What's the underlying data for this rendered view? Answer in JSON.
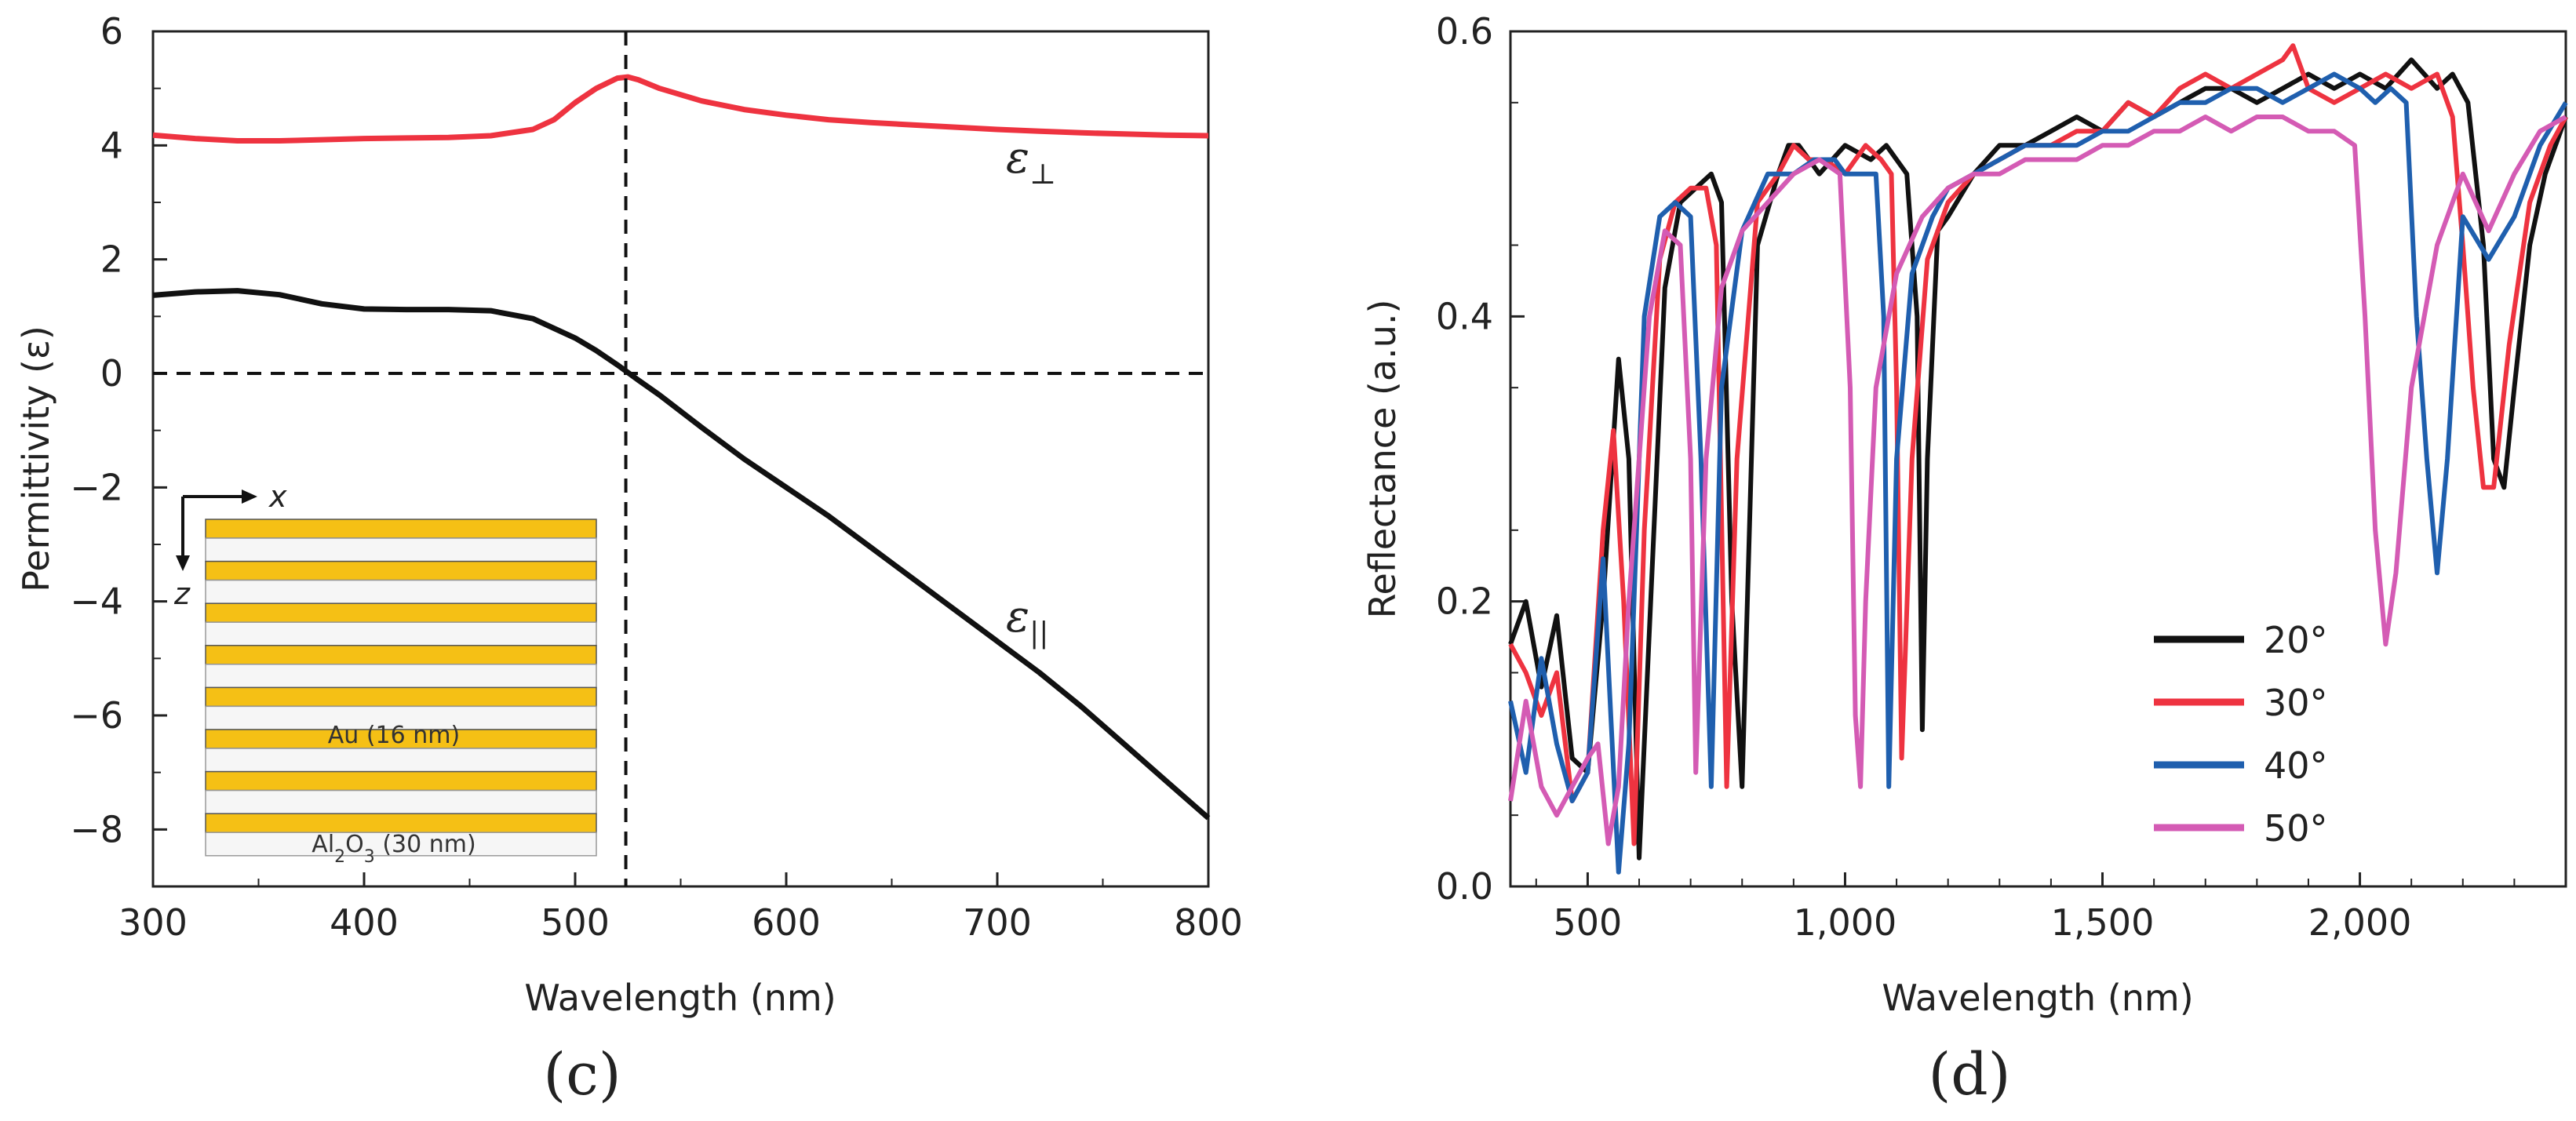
{
  "chart_data": [
    {
      "panel": "(c)",
      "type": "line",
      "xlabel": "Wavelength (nm)",
      "ylabel": "Permittivity (ε)",
      "xlim": [
        300,
        800
      ],
      "ylim": [
        -9,
        6
      ],
      "xticks": [
        300,
        400,
        500,
        600,
        700,
        800
      ],
      "yticks": [
        6,
        4,
        2,
        0,
        -2,
        -4,
        -6,
        -8
      ],
      "vline_x": 524,
      "hline_y": 0,
      "series": [
        {
          "name": "ε⊥",
          "label_main": "ε",
          "label_sub": "⊥",
          "color": "#ee3340",
          "x": [
            300,
            320,
            340,
            360,
            380,
            400,
            420,
            440,
            460,
            480,
            490,
            500,
            510,
            520,
            525,
            530,
            540,
            560,
            580,
            600,
            620,
            640,
            660,
            680,
            700,
            720,
            740,
            760,
            780,
            800
          ],
          "y": [
            4.18,
            4.12,
            4.08,
            4.08,
            4.1,
            4.12,
            4.13,
            4.14,
            4.17,
            4.28,
            4.45,
            4.75,
            5.0,
            5.18,
            5.2,
            5.15,
            5.0,
            4.78,
            4.63,
            4.53,
            4.45,
            4.4,
            4.36,
            4.32,
            4.28,
            4.25,
            4.22,
            4.2,
            4.18,
            4.17
          ]
        },
        {
          "name": "ε||",
          "label_main": "ε",
          "label_sub": "||",
          "color": "#111111",
          "x": [
            300,
            320,
            340,
            360,
            380,
            400,
            420,
            440,
            460,
            480,
            500,
            510,
            520,
            530,
            540,
            560,
            580,
            600,
            620,
            640,
            660,
            680,
            700,
            720,
            740,
            760,
            780,
            800
          ],
          "y": [
            1.37,
            1.43,
            1.45,
            1.38,
            1.22,
            1.13,
            1.12,
            1.12,
            1.1,
            0.96,
            0.62,
            0.4,
            0.15,
            -0.12,
            -0.38,
            -0.95,
            -1.5,
            -2.0,
            -2.5,
            -3.05,
            -3.6,
            -4.15,
            -4.7,
            -5.25,
            -5.85,
            -6.5,
            -7.15,
            -7.8
          ]
        }
      ],
      "inset": {
        "x_axis_label": "x",
        "z_axis_label": "z",
        "metal_label": "Au (16 nm)",
        "dielectric_label_parts": [
          "Al",
          "2",
          "O",
          "3",
          " (30 nm)"
        ],
        "layer_pairs": 8,
        "metal_color": "#f5c015",
        "dielectric_color": "#f6f6f6"
      }
    },
    {
      "panel": "(d)",
      "type": "line",
      "xlabel": "Wavelength (nm)",
      "ylabel": "Reflectance (a.u.)",
      "xlim": [
        350,
        2400
      ],
      "ylim": [
        0,
        0.6
      ],
      "xticks": [
        500,
        1000,
        1500,
        2000
      ],
      "xticklabels": [
        "500",
        "1,000",
        "1,500",
        "2,000"
      ],
      "yticks": [
        0.0,
        0.2,
        0.4,
        0.6
      ],
      "yticklabels": [
        "0.0",
        "0.2",
        "0.4",
        "0.6"
      ],
      "legend_position": "lower-right",
      "series": [
        {
          "name": "20°",
          "color": "#111111",
          "x": [
            350,
            380,
            410,
            440,
            470,
            500,
            530,
            560,
            580,
            600,
            620,
            650,
            680,
            710,
            740,
            760,
            780,
            800,
            830,
            870,
            890,
            910,
            950,
            1000,
            1050,
            1080,
            1100,
            1120,
            1140,
            1150,
            1160,
            1180,
            1200,
            1250,
            1300,
            1350,
            1400,
            1450,
            1500,
            1550,
            1600,
            1650,
            1700,
            1750,
            1800,
            1850,
            1900,
            1950,
            2000,
            2050,
            2100,
            2150,
            2180,
            2210,
            2240,
            2260,
            2280,
            2300,
            2330,
            2360,
            2400
          ],
          "y": [
            0.17,
            0.2,
            0.14,
            0.19,
            0.09,
            0.08,
            0.2,
            0.37,
            0.3,
            0.02,
            0.18,
            0.42,
            0.48,
            0.49,
            0.5,
            0.48,
            0.2,
            0.07,
            0.45,
            0.5,
            0.52,
            0.52,
            0.5,
            0.52,
            0.51,
            0.52,
            0.51,
            0.5,
            0.4,
            0.11,
            0.3,
            0.46,
            0.47,
            0.5,
            0.52,
            0.52,
            0.53,
            0.54,
            0.53,
            0.55,
            0.54,
            0.55,
            0.56,
            0.56,
            0.55,
            0.56,
            0.57,
            0.56,
            0.57,
            0.56,
            0.58,
            0.56,
            0.57,
            0.55,
            0.45,
            0.3,
            0.28,
            0.35,
            0.45,
            0.5,
            0.54
          ]
        },
        {
          "name": "30°",
          "color": "#ee3340",
          "x": [
            350,
            380,
            410,
            440,
            470,
            500,
            530,
            550,
            570,
            590,
            610,
            640,
            670,
            700,
            730,
            750,
            770,
            790,
            830,
            870,
            900,
            930,
            960,
            1000,
            1040,
            1070,
            1090,
            1100,
            1110,
            1130,
            1160,
            1200,
            1250,
            1300,
            1350,
            1400,
            1450,
            1500,
            1550,
            1600,
            1650,
            1700,
            1750,
            1800,
            1850,
            1870,
            1900,
            1950,
            2000,
            2050,
            2100,
            2150,
            2180,
            2200,
            2220,
            2240,
            2260,
            2290,
            2330,
            2370,
            2400
          ],
          "y": [
            0.17,
            0.15,
            0.12,
            0.15,
            0.06,
            0.08,
            0.25,
            0.32,
            0.2,
            0.03,
            0.25,
            0.44,
            0.48,
            0.49,
            0.49,
            0.45,
            0.07,
            0.3,
            0.48,
            0.5,
            0.52,
            0.51,
            0.51,
            0.5,
            0.52,
            0.51,
            0.5,
            0.35,
            0.09,
            0.3,
            0.44,
            0.48,
            0.5,
            0.51,
            0.52,
            0.52,
            0.53,
            0.53,
            0.55,
            0.54,
            0.56,
            0.57,
            0.56,
            0.57,
            0.58,
            0.59,
            0.56,
            0.55,
            0.56,
            0.57,
            0.56,
            0.57,
            0.54,
            0.45,
            0.35,
            0.28,
            0.28,
            0.38,
            0.48,
            0.52,
            0.54
          ]
        },
        {
          "name": "40°",
          "color": "#1f5fae",
          "x": [
            350,
            380,
            410,
            440,
            470,
            500,
            530,
            545,
            560,
            580,
            610,
            640,
            670,
            700,
            720,
            740,
            760,
            800,
            850,
            900,
            940,
            980,
            1000,
            1030,
            1060,
            1075,
            1085,
            1100,
            1130,
            1170,
            1200,
            1250,
            1300,
            1350,
            1400,
            1450,
            1500,
            1550,
            1600,
            1650,
            1700,
            1750,
            1800,
            1850,
            1900,
            1950,
            2000,
            2030,
            2060,
            2090,
            2110,
            2130,
            2150,
            2170,
            2200,
            2250,
            2300,
            2350,
            2400
          ],
          "y": [
            0.13,
            0.08,
            0.16,
            0.1,
            0.06,
            0.08,
            0.23,
            0.12,
            0.01,
            0.1,
            0.4,
            0.47,
            0.48,
            0.47,
            0.3,
            0.07,
            0.35,
            0.46,
            0.5,
            0.5,
            0.51,
            0.51,
            0.5,
            0.5,
            0.5,
            0.4,
            0.07,
            0.3,
            0.43,
            0.47,
            0.49,
            0.5,
            0.51,
            0.52,
            0.52,
            0.52,
            0.53,
            0.53,
            0.54,
            0.55,
            0.55,
            0.56,
            0.56,
            0.55,
            0.56,
            0.57,
            0.56,
            0.55,
            0.56,
            0.55,
            0.4,
            0.3,
            0.22,
            0.3,
            0.47,
            0.44,
            0.47,
            0.52,
            0.55
          ]
        },
        {
          "name": "50°",
          "color": "#d45bb4",
          "x": [
            350,
            380,
            410,
            440,
            470,
            500,
            520,
            540,
            560,
            580,
            620,
            650,
            680,
            700,
            710,
            730,
            760,
            800,
            850,
            900,
            950,
            990,
            1010,
            1020,
            1030,
            1040,
            1060,
            1100,
            1150,
            1200,
            1250,
            1300,
            1350,
            1400,
            1450,
            1500,
            1550,
            1600,
            1650,
            1700,
            1750,
            1800,
            1850,
            1900,
            1950,
            1990,
            2010,
            2030,
            2050,
            2070,
            2100,
            2150,
            2200,
            2250,
            2300,
            2350,
            2400
          ],
          "y": [
            0.06,
            0.13,
            0.07,
            0.05,
            0.07,
            0.09,
            0.1,
            0.03,
            0.07,
            0.2,
            0.4,
            0.46,
            0.45,
            0.3,
            0.08,
            0.3,
            0.42,
            0.46,
            0.48,
            0.5,
            0.51,
            0.5,
            0.35,
            0.12,
            0.07,
            0.2,
            0.35,
            0.43,
            0.47,
            0.49,
            0.5,
            0.5,
            0.51,
            0.51,
            0.51,
            0.52,
            0.52,
            0.53,
            0.53,
            0.54,
            0.53,
            0.54,
            0.54,
            0.53,
            0.53,
            0.52,
            0.4,
            0.25,
            0.17,
            0.22,
            0.35,
            0.45,
            0.5,
            0.46,
            0.5,
            0.53,
            0.54
          ]
        }
      ]
    }
  ]
}
